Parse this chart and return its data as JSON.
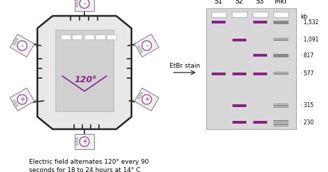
{
  "bg_color": "#ffffff",
  "hex_face": "#e8e8e8",
  "hex_edge": "#222222",
  "gel_face": "#d0d0d0",
  "gel_edge": "#bbbbbb",
  "angle_color": "#882288",
  "band_color": "#882288",
  "marker_face": "#777777",
  "well_color": "#ffffff",
  "elec_face": "#f0f0f0",
  "elec_edge": "#888888",
  "caption": "Electric field alternates 120° every 90\nseconds for 18 to 24 hours at 14° C",
  "etbr_label": "EtBr stain",
  "angle_label": "120°",
  "col_labels": [
    "S1",
    "S2",
    "S3",
    "Mkr"
  ],
  "kb_label": "kb",
  "marker_sizes": [
    1532,
    1091,
    817,
    577,
    315,
    230
  ],
  "marker_labels": [
    "1,532",
    "1,091",
    "817",
    "577",
    "315",
    "230"
  ],
  "s1_bands": [
    1532,
    577
  ],
  "s2_bands": [
    1091,
    577,
    315,
    230
  ],
  "s3_bands": [
    1532,
    817,
    577,
    230
  ],
  "plus_sign": "+",
  "minus_sign": "-",
  "plus_color": "#882288",
  "minus_color": "#882288",
  "tick_color": "#222222",
  "wavy_color": "#aaaaaa",
  "arrow_color": "#333333"
}
